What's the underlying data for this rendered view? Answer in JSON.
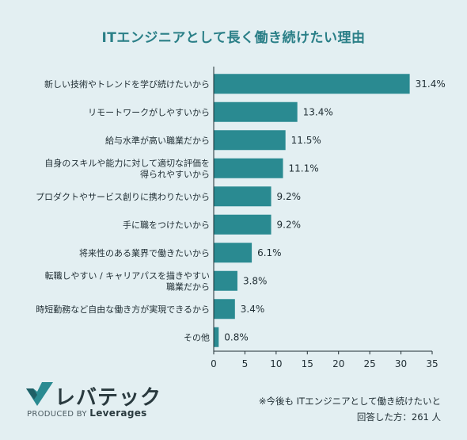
{
  "chart_data": {
    "type": "bar",
    "orientation": "horizontal",
    "title": "ITエンジニアとして長く働き続けたい理由",
    "categories": [
      [
        "新しい技術やトレンドを学び続けたいから"
      ],
      [
        "リモートワークがしやすいから"
      ],
      [
        "給与水準が高い職業だから"
      ],
      [
        "自身のスキルや能力に対して適切な評価を",
        "得られやすいから"
      ],
      [
        "プロダクトやサービス創りに携わりたいから"
      ],
      [
        "手に職をつけたいから"
      ],
      [
        "将来性のある業界で働きたいから"
      ],
      [
        "転職しやすい / キャリアパスを描きやすい",
        "職業だから"
      ],
      [
        "時短勤務など自由な働き方が実現できるから"
      ],
      [
        "その他"
      ]
    ],
    "values": [
      31.4,
      13.4,
      11.5,
      11.1,
      9.2,
      9.2,
      6.1,
      3.8,
      3.4,
      0.8
    ],
    "value_labels": [
      "31.4%",
      "13.4%",
      "11.5%",
      "11.1%",
      "9.2%",
      "9.2%",
      "6.1%",
      "3.8%",
      "3.4%",
      "0.8%"
    ],
    "xlim": [
      0,
      35
    ],
    "xticks": [
      0,
      5,
      10,
      15,
      20,
      25,
      30,
      35
    ],
    "grid": false,
    "bar_color": "#2a8a91",
    "axis_color": "#1f2d33"
  },
  "brand": {
    "name": "レバテック",
    "produced_by": "PRODUCED BY",
    "company": "Leverages",
    "logo_color": "#2a8a91"
  },
  "footnote": {
    "line1": "※今後も ITエンジニアとして働き続けたいと",
    "line2": "回答した方：261 人"
  }
}
